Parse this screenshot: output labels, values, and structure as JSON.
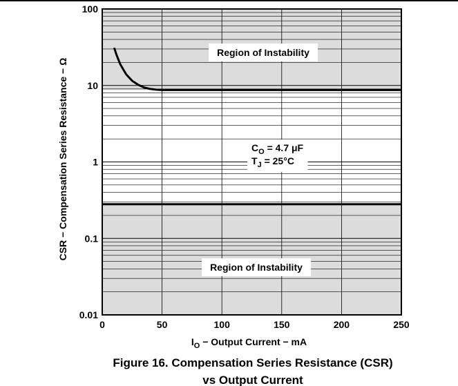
{
  "chart_data": {
    "type": "line",
    "xlabel_main": "I",
    "xlabel_sub": "O",
    "xlabel_rest": " − Output Current − mA",
    "ylabel": "CSR − Compensation Series Resistance − Ω",
    "x_ticks": [
      "0",
      "50",
      "100",
      "150",
      "200",
      "250"
    ],
    "y_ticks": [
      "100",
      "10",
      "1",
      "0.1",
      "0.01"
    ],
    "xlim": [
      0,
      250
    ],
    "ylim": [
      0.01,
      100
    ],
    "y_scale": "log",
    "grid": true,
    "upper_boundary": {
      "x": [
        10,
        12,
        15,
        20,
        25,
        30,
        35,
        40,
        45,
        50,
        55,
        250
      ],
      "y": [
        31,
        25,
        19,
        14,
        11.5,
        10.2,
        9.4,
        9.0,
        8.8,
        8.7,
        8.7,
        8.7
      ]
    },
    "lower_boundary": {
      "x": [
        0,
        250
      ],
      "y": [
        0.28,
        0.28
      ]
    },
    "region_upper_label": "Region of Instability",
    "region_lower_label": "Region of Instability",
    "annotation": {
      "line1_main": "C",
      "line1_sub": "O",
      "line1_rest": " = 4.7 μF",
      "line2_main": "T",
      "line2_sub": "J",
      "line2_rest": " = 25°C"
    },
    "shading_color": "#dcdcdc"
  },
  "caption": {
    "line1": "Figure 16. Compensation Series Resistance (CSR)",
    "line2": "vs Output Current"
  }
}
